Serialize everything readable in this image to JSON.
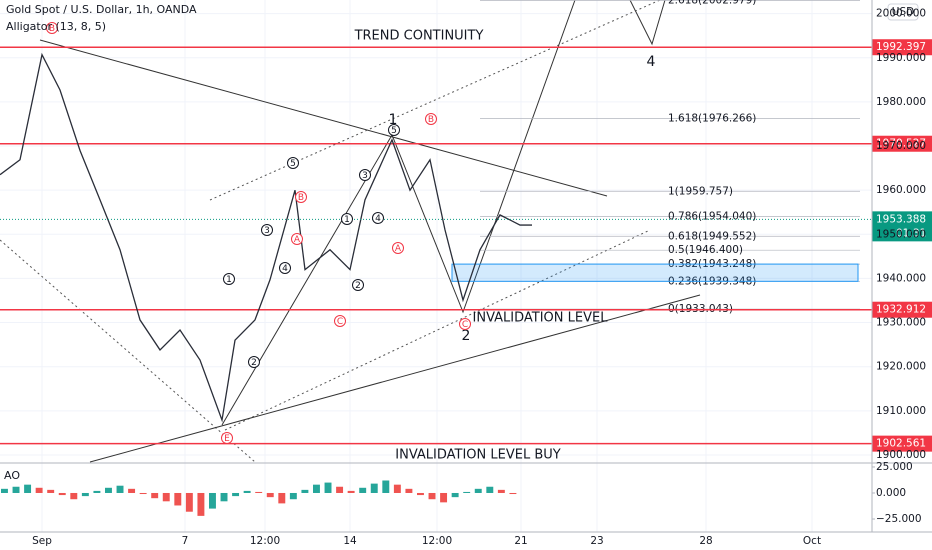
{
  "chart_data": {
    "type": "line",
    "title": "Gold Spot / U.S. Dollar, 1h, OANDA",
    "indicator": "Alligator (13, 8, 5)",
    "currency": "USD",
    "color": "#2a2e39",
    "grid": true,
    "x": [
      0,
      10,
      21,
      30,
      40,
      50,
      60,
      70,
      80,
      90,
      100,
      111,
      117.5,
      127.5,
      135,
      147.5,
      152.5,
      165,
      175,
      182.5,
      196,
      205,
      215,
      222.5,
      231.5,
      240,
      250,
      260,
      266
    ],
    "values": [
      1963.5,
      1966.9,
      1990.7,
      1982.7,
      1969,
      1957.8,
      1946.5,
      1930.6,
      1923.8,
      1928.3,
      1921.5,
      1907.9,
      1926,
      1930.6,
      1939.7,
      1960,
      1942,
      1946.5,
      1942,
      1957.8,
      1971.4,
      1960,
      1966.9,
      1951,
      1935.1,
      1946.5,
      1954.4,
      1952.1,
      1952.1
    ],
    "xlim": [
      0,
      436
    ],
    "xticks": [
      {
        "value": 21,
        "label": "Sep"
      },
      {
        "value": 92.5,
        "label": "7"
      },
      {
        "value": 132.5,
        "label": "12:00"
      },
      {
        "value": 175,
        "label": "14"
      },
      {
        "value": 218.5,
        "label": "12:00"
      },
      {
        "value": 260.5,
        "label": "21"
      },
      {
        "value": 298.5,
        "label": "23"
      },
      {
        "value": 353,
        "label": "28"
      },
      {
        "value": 406,
        "label": "Oct"
      }
    ],
    "ylim": [
      1898.4,
      2003.1
    ],
    "yticks": [
      {
        "value": 1900,
        "label": "1900.000"
      },
      {
        "value": 1910,
        "label": "1910.000"
      },
      {
        "value": 1920,
        "label": "1920.000"
      },
      {
        "value": 1930,
        "label": "1930.000"
      },
      {
        "value": 1940,
        "label": "1940.000"
      },
      {
        "value": 1950,
        "label": "1950.000"
      },
      {
        "value": 1960,
        "label": "1960.000"
      },
      {
        "value": 1970,
        "label": "1970.000"
      },
      {
        "value": 1980,
        "label": "1980.000"
      },
      {
        "value": 1990,
        "label": "1990.000"
      },
      {
        "value": 2000,
        "label": "2000.000"
      }
    ],
    "levels": [
      1992.397,
      1970.527,
      1932.912,
      1902.561
    ],
    "level_color": "#f23645",
    "last_price": {
      "value": 1953.388,
      "countdown": "01:31",
      "color": "#089981"
    },
    "fib": [
      {
        "price": 2002.979,
        "label": "2.618(2002.979)"
      },
      {
        "price": 1976.266,
        "label": "1.618(1976.266)"
      },
      {
        "price": 1959.757,
        "label": "1(1959.757)"
      },
      {
        "price": 1954.04,
        "label": "0.786(1954.040)"
      },
      {
        "price": 1949.552,
        "label": "0.618(1949.552)"
      },
      {
        "price": 1946.4,
        "label": "0.5(1946.400)"
      },
      {
        "price": 1943.248,
        "label": "0.382(1943.248)"
      },
      {
        "price": 1939.348,
        "label": "0.236(1939.348)"
      },
      {
        "price": 1933.043,
        "label": "0(1933.043)"
      }
    ],
    "annotations": {
      "trend": "TREND CONTINUITY",
      "invalidation": "INVALIDATION LEVEL",
      "invalidation_buy": "INVALIDATION LEVEL BUY",
      "waves": [
        "1",
        "2",
        "4"
      ],
      "circled": [
        "1",
        "2",
        "3",
        "4",
        "5"
      ],
      "letters": [
        "A",
        "B",
        "C",
        "E"
      ]
    },
    "ao": {
      "name": "AO",
      "up_color": "#26a69a",
      "down_color": "#ef5350",
      "values": [
        4,
        6,
        8,
        5,
        3,
        -2,
        -6,
        -3,
        2,
        5,
        7,
        4,
        -1,
        -5,
        -8,
        -12,
        -18,
        -22,
        -15,
        -8,
        -3,
        2,
        1,
        -4,
        -10,
        -6,
        3,
        8,
        10,
        6,
        2,
        5,
        9,
        12,
        8,
        4,
        -2,
        -6,
        -9,
        -4,
        1,
        4,
        6,
        3,
        -1
      ],
      "ylim": [
        -37.5,
        26.9
      ],
      "yticks": [
        {
          "value": 25,
          "label": "25.000"
        },
        {
          "value": 0,
          "label": "0.000"
        },
        {
          "value": -25,
          "label": "−25.000"
        }
      ]
    }
  }
}
